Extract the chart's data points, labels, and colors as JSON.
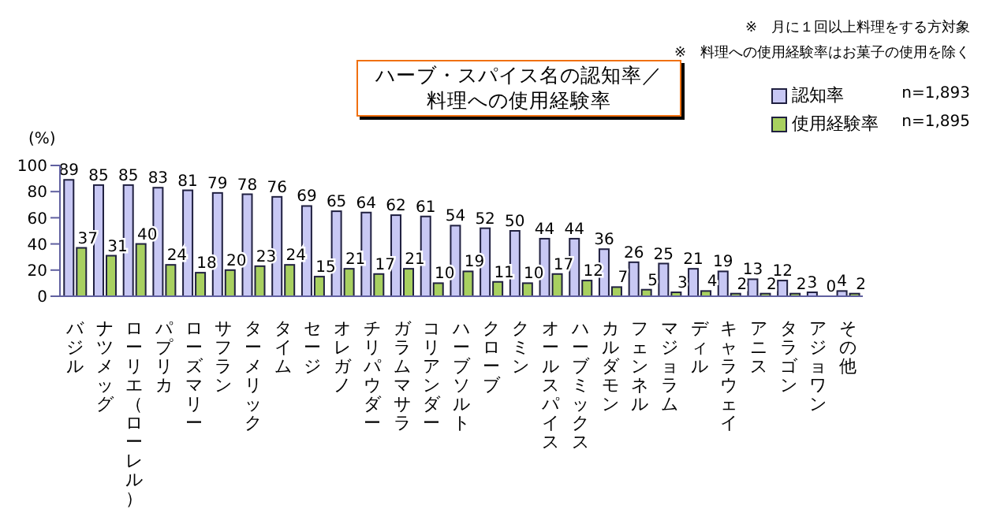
{
  "chart_data": {
    "type": "bar",
    "title": "ハーブ・スパイス名の認知率／料理への使用経験率",
    "ylabel": "(%)",
    "annotations": [
      "※　月に１回以上料理をする方対象",
      "※　料理への使用経験率はお菓子の使用を除く",
      "n=1,893",
      "n=1,895"
    ],
    "categories": [
      "バジル",
      "ナツメッグ",
      "ローリエ（ローレル）",
      "パプリカ",
      "ローズマリー",
      "サフラン",
      "ターメリック",
      "タイム",
      "セージ",
      "オレガノ",
      "チリパウダー",
      "ガラムマサラ",
      "コリアンダー",
      "ハーブソルト",
      "クローブ",
      "クミン",
      "オールスパイス",
      "ハーブミックス",
      "カルダモン",
      "フェンネル",
      "マジョラム",
      "ディル",
      "キャラウェイ",
      "アニス",
      "タラゴン",
      "アジョワン",
      "その他"
    ],
    "series": [
      {
        "name": "認知率",
        "color": "#c8c8f4",
        "values": [
          89,
          85,
          85,
          83,
          81,
          79,
          78,
          76,
          69,
          65,
          64,
          62,
          61,
          54,
          52,
          50,
          44,
          44,
          36,
          26,
          25,
          21,
          19,
          13,
          12,
          3,
          4
        ]
      },
      {
        "name": "使用経験率",
        "color": "#a8d060",
        "values": [
          37,
          31,
          40,
          24,
          18,
          20,
          23,
          24,
          15,
          21,
          17,
          21,
          10,
          19,
          11,
          10,
          17,
          12,
          7,
          5,
          3,
          4,
          2,
          2,
          2,
          0,
          2
        ]
      }
    ],
    "ylim": [
      0,
      100
    ],
    "yticks": [
      0,
      20,
      40,
      60,
      80,
      100
    ],
    "grid": false,
    "legend": "top right",
    "data_labels": true
  }
}
